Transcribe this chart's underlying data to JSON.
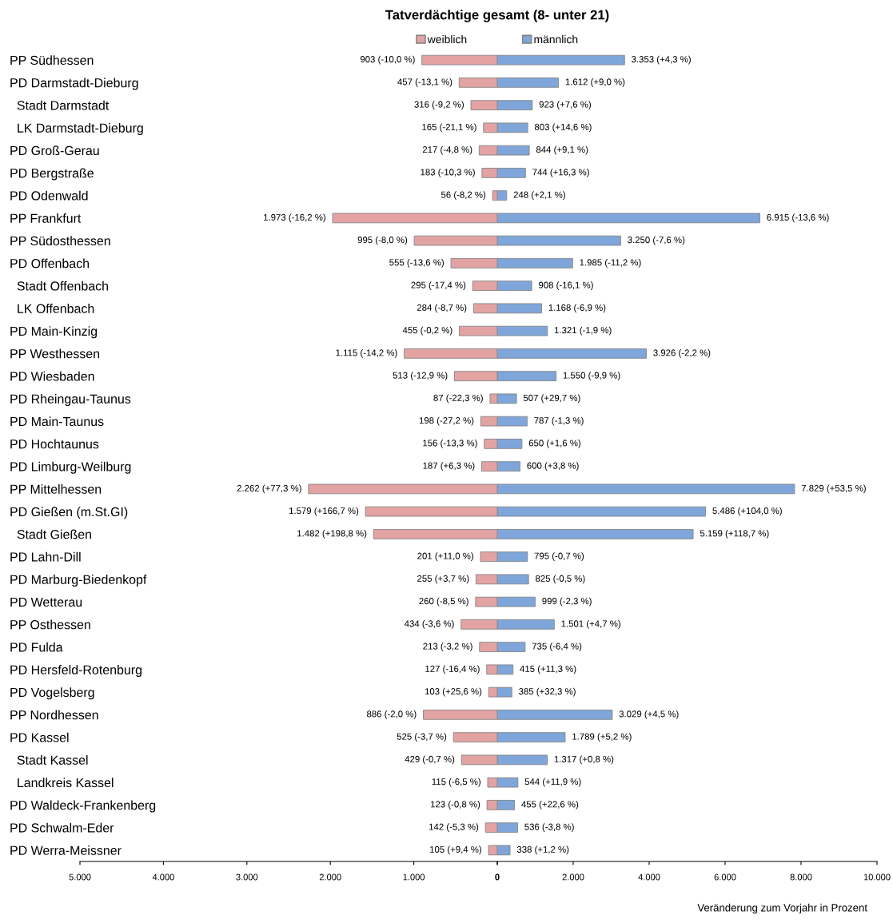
{
  "chart_data": [
    {
      "type": "bar",
      "orientation": "horizontal",
      "title": "Tatverdächtige gesamt (8- unter 21)",
      "legend": "top",
      "tick_labels": true,
      "categories": [
        "PP Südhessen",
        "PD Darmstadt-Dieburg",
        "  Stadt Darmstadt",
        "  LK Darmstadt-Dieburg",
        "PD Groß-Gerau",
        "PD Bergstraße",
        "PD Odenwald",
        "PP Frankfurt",
        "PP Südosthessen",
        "PD Offenbach",
        "  Stadt Offenbach",
        "  LK Offenbach",
        "PD Main-Kinzig",
        "PP Westhessen",
        "PD Wiesbaden",
        "PD Rheingau-Taunus",
        "PD Main-Taunus",
        "PD Hochtaunus",
        "PD Limburg-Weilburg",
        "PP Mittelhessen",
        "PD Gießen (m.St.GI)",
        "  Stadt Gießen",
        "PD Lahn-Dill",
        "PD Marburg-Biedenkopf",
        "PD Wetterau",
        "PP Osthessen",
        "PD Fulda",
        "PD Hersfeld-Rotenburg",
        "PD Vogelsberg",
        "PP Nordhessen",
        "PD Kassel",
        "  Stadt Kassel",
        "  Landkreis Kassel",
        "PD Waldeck-Frankenberg",
        "PD Schwalm-Eder",
        "PD Werra-Meissner"
      ],
      "xlim": [
        5000,
        0
      ],
      "xticks": [
        {
          "value": 5000,
          "label": "5.000"
        },
        {
          "value": 4000,
          "label": "4.000"
        },
        {
          "value": 3000,
          "label": "3.000"
        },
        {
          "value": 2000,
          "label": "2.000"
        },
        {
          "value": 1000,
          "label": "1.000"
        },
        0
      ],
      "series": [
        {
          "name": "weiblich",
          "color": "#e3a3a3",
          "values": [
            903,
            457,
            316,
            165,
            217,
            183,
            56,
            1973,
            995,
            555,
            295,
            284,
            455,
            1115,
            513,
            87,
            198,
            156,
            187,
            2262,
            1579,
            1482,
            201,
            255,
            260,
            434,
            213,
            127,
            103,
            886,
            525,
            429,
            115,
            123,
            142,
            105
          ],
          "value_labels": [
            "903 (-10,0 %)",
            "457 (-13,1 %)",
            "316 (-9,2 %)",
            "165 (-21,1 %)",
            "217 (-4,8 %)",
            "183 (-10,3 %)",
            "56 (-8,2 %)",
            "1.973 (-16,2 %)",
            "995 (-8,0 %)",
            "555 (-13,6 %)",
            "295 (-17,4 %)",
            "284 (-8,7 %)",
            "455 (-0,2 %)",
            "1.115 (-14,2 %)",
            "513 (-12,9 %)",
            "87 (-22,3 %)",
            "198 (-27,2 %)",
            "156 (-13,3 %)",
            "187 (+6,3 %)",
            "2.262 (+77,3 %)",
            "1.579 (+166,7 %)",
            "1.482 (+198,8 %)",
            "201 (+11,0 %)",
            "255 (+3,7 %)",
            "260 (-8,5 %)",
            "434 (-3,6 %)",
            "213 (-3,2 %)",
            "127 (-16,4 %)",
            "103 (+25,6 %)",
            "886 (-2,0 %)",
            "525 (-3,7 %)",
            "429 (-0,7 %)",
            "115 (-6,5 %)",
            "123 (-0,8 %)",
            "142 (-5,3 %)",
            "105 (+9,4 %)"
          ]
        }
      ]
    },
    {
      "type": "bar",
      "orientation": "horizontal",
      "legend": "top",
      "tick_labels": "x",
      "categories": [
        null,
        null,
        null,
        null,
        null,
        null,
        null,
        null,
        null,
        null,
        null,
        null,
        null,
        null,
        null,
        null,
        null,
        null,
        null,
        null,
        null,
        null,
        null,
        null,
        null,
        null,
        null,
        null,
        null,
        null,
        null,
        null,
        null,
        null,
        null,
        null
      ],
      "xlim": [
        0,
        10000
      ],
      "xticks": [
        {
          "value": 0,
          "label": null
        },
        {
          "value": 2000,
          "label": "2.000"
        },
        {
          "value": 4000,
          "label": "4.000"
        },
        {
          "value": 6000,
          "label": "6.000"
        },
        {
          "value": 8000,
          "label": "8.000"
        },
        {
          "value": 10000,
          "label": "10.000"
        }
      ],
      "annotations": [
        "Veränderung zum Vorjahr in Prozent"
      ],
      "series": [
        {
          "name": "männlich",
          "color": "#7fa6da",
          "values": [
            3353,
            1612,
            923,
            803,
            844,
            744,
            248,
            6915,
            3250,
            1985,
            908,
            1168,
            1321,
            3926,
            1550,
            507,
            787,
            650,
            600,
            7829,
            5486,
            5159,
            795,
            825,
            999,
            1501,
            735,
            415,
            385,
            3029,
            1789,
            1317,
            544,
            455,
            536,
            338
          ],
          "value_labels": [
            "3.353 (+4,3 %)",
            "1.612 (+9,0 %)",
            "923 (+7,6 %)",
            "803 (+14,6 %)",
            "844 (+9,1 %)",
            "744 (+16,3 %)",
            "248 (+2,1 %)",
            "6.915 (-13,6 %)",
            "3.250 (-7,6 %)",
            "1.985 (-11,2 %)",
            "908 (-16,1 %)",
            "1.168 (-6,9 %)",
            "1.321 (-1,9 %)",
            "3.926 (-2,2 %)",
            "1.550 (-9,9 %)",
            "507 (+29,7 %)",
            "787 (-1,3 %)",
            "650 (+1,6 %)",
            "600 (+3,8 %)",
            "7.829 (+53,5 %)",
            "5.486 (+104,0 %)",
            "5.159 (+118,7 %)",
            "795 (-0,7 %)",
            "825 (-0,5 %)",
            "999 (-2,3 %)",
            "1.501 (+4,7 %)",
            "735 (-6,4 %)",
            "415 (+11,3 %)",
            "385 (+32,3 %)",
            "3.029 (+4,5 %)",
            "1.789 (+5,2 %)",
            "1.317 (+0,8 %)",
            "544 (+11,9 %)",
            "455 (+22,6 %)",
            "536 (-3,8 %)",
            "338 (+1,2 %)"
          ]
        }
      ]
    }
  ]
}
